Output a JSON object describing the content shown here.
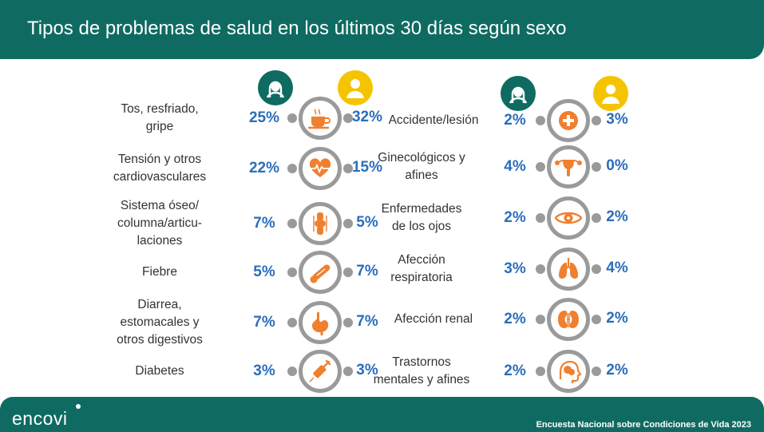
{
  "title": "Tipos de problemas de salud en los últimos 30 días según sexo",
  "footer": {
    "logo": "encovi",
    "source": "Encuesta Nacional sobre Condiciones de Vida 2023"
  },
  "colors": {
    "header": "#0f6b61",
    "female": "#0f6b61",
    "male": "#f5c400",
    "value": "#2a6ebb",
    "icon": "#f07f2f",
    "ring": "#9a9a9a"
  },
  "chart_data": {
    "type": "table",
    "title": "Tipos de problemas de salud en los últimos 30 días según sexo",
    "series": [
      {
        "name": "Mujeres",
        "icon": "female-icon"
      },
      {
        "name": "Hombres",
        "icon": "male-icon"
      }
    ],
    "left": [
      {
        "label": "Tos, resfriado, gripe",
        "lines": [
          "Tos, resfriado,",
          "gripe"
        ],
        "female": "25%",
        "male": "32%",
        "icon": "coffee-cup-icon"
      },
      {
        "label": "Tensión y otros cardiovasculares",
        "lines": [
          "Tensión y otros",
          "cardiovasculares"
        ],
        "female": "22%",
        "male": "15%",
        "icon": "heart-icon"
      },
      {
        "label": "Sistema óseo/ columna/articulaciones",
        "lines": [
          "Sistema óseo/",
          "columna/articu-",
          "laciones"
        ],
        "female": "7%",
        "male": "5%",
        "icon": "bone-joint-icon"
      },
      {
        "label": "Fiebre",
        "lines": [
          "Fiebre"
        ],
        "female": "5%",
        "male": "7%",
        "icon": "thermometer-icon"
      },
      {
        "label": "Diarrea, estomacales y otros digestivos",
        "lines": [
          "Diarrea,",
          "estomacales y",
          "otros digestivos"
        ],
        "female": "7%",
        "male": "7%",
        "icon": "stomach-icon"
      },
      {
        "label": "Diabetes",
        "lines": [
          "Diabetes"
        ],
        "female": "3%",
        "male": "3%",
        "icon": "syringe-icon"
      }
    ],
    "right": [
      {
        "label": "Accidente/lesión",
        "lines": [
          "Accidente/lesión"
        ],
        "female": "2%",
        "male": "3%",
        "icon": "medical-cross-icon"
      },
      {
        "label": "Ginecológicos y afines",
        "lines": [
          "Ginecológicos y",
          "afines"
        ],
        "female": "4%",
        "male": "0%",
        "icon": "uterus-icon"
      },
      {
        "label": "Enfermedades de los ojos",
        "lines": [
          "Enfermedades",
          "de los ojos"
        ],
        "female": "2%",
        "male": "2%",
        "icon": "eye-icon"
      },
      {
        "label": "Afección respiratoria",
        "lines": [
          "Afección",
          "respiratoria"
        ],
        "female": "3%",
        "male": "4%",
        "icon": "lungs-icon"
      },
      {
        "label": "Afección renal",
        "lines": [
          "Afección renal"
        ],
        "female": "2%",
        "male": "2%",
        "icon": "kidneys-icon"
      },
      {
        "label": "Trastornos mentales y afines",
        "lines": [
          "Trastornos",
          "mentales y afines"
        ],
        "female": "2%",
        "male": "2%",
        "icon": "brain-head-icon"
      }
    ]
  }
}
